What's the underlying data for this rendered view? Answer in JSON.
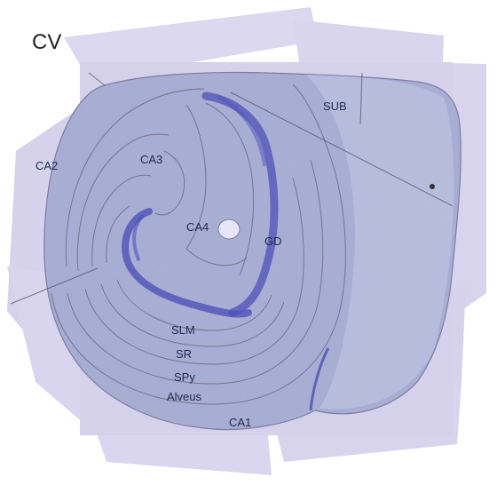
{
  "figure": {
    "panel_label": "CV",
    "colors": {
      "background": "#ffffff",
      "slide": "#d7d3ec",
      "tissue": "#a9b1d6",
      "cell_layer": "#4a4fb6",
      "outline": "#6a6880",
      "label_text": "#1f2a4a"
    },
    "regions": [
      {
        "id": "sub",
        "label": "SUB"
      },
      {
        "id": "ca2",
        "label": "CA2"
      },
      {
        "id": "ca3",
        "label": "CA3"
      },
      {
        "id": "ca4",
        "label": "CA4"
      },
      {
        "id": "gd",
        "label": "GD"
      },
      {
        "id": "slm",
        "label": "SLM"
      },
      {
        "id": "sr",
        "label": "SR"
      },
      {
        "id": "spy",
        "label": "SPy"
      },
      {
        "id": "alveus",
        "label": "Alveus"
      },
      {
        "id": "ca1",
        "label": "CA1"
      }
    ]
  }
}
